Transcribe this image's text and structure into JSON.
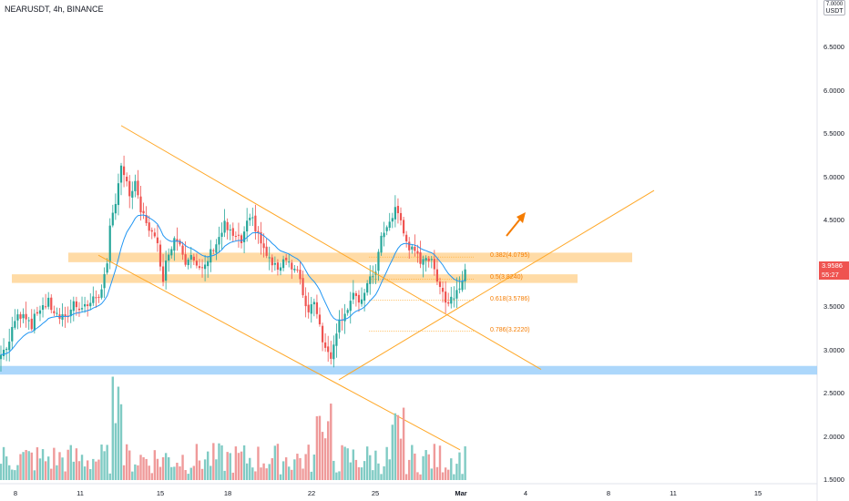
{
  "header": {
    "title": "NEARUSDT, 4h, BINANCE"
  },
  "axis": {
    "unit": "USDT",
    "price_labels": [
      "7.0000",
      "6.5000",
      "6.0000",
      "5.5000",
      "5.0000",
      "4.5000",
      "3.5000",
      "3.0000",
      "2.5000",
      "2.0000",
      "1.5000"
    ],
    "current_price": "3.9586",
    "countdown": "55:27",
    "time_labels": [
      {
        "text": "8",
        "bold": false
      },
      {
        "text": "11",
        "bold": false
      },
      {
        "text": "15",
        "bold": false
      },
      {
        "text": "18",
        "bold": false
      },
      {
        "text": "22",
        "bold": false
      },
      {
        "text": "25",
        "bold": false
      },
      {
        "text": "Mar",
        "bold": true
      },
      {
        "text": "4",
        "bold": false
      },
      {
        "text": "8",
        "bold": false
      },
      {
        "text": "11",
        "bold": false
      },
      {
        "text": "15",
        "bold": false
      }
    ]
  },
  "fib_levels": [
    {
      "label": "0.382(4.0795)",
      "value": 4.0795
    },
    {
      "label": "0.5(3.8240)",
      "value": 3.824
    },
    {
      "label": "0.618(3.5786)",
      "value": 3.5786
    },
    {
      "label": "0.786(3.2220)",
      "value": 3.222
    }
  ],
  "colors": {
    "up": "#26a69a",
    "down": "#ef5350",
    "ema": "#2196f3",
    "drawing": "#ffa726",
    "support_zone": "#90caf9",
    "resistance_zone": "#ffcc80"
  },
  "chart_data": {
    "type": "candlestick",
    "symbol": "NEARUSDT",
    "interval": "4h",
    "exchange": "BINANCE",
    "ylim": [
      1.5,
      7.0
    ],
    "zones": [
      {
        "kind": "resistance",
        "low": 4.02,
        "high": 4.13
      },
      {
        "kind": "resistance",
        "low": 3.78,
        "high": 3.88
      },
      {
        "kind": "support",
        "low": 2.72,
        "high": 2.82
      }
    ],
    "price_path": [
      [
        0,
        2.95
      ],
      [
        3,
        3.1
      ],
      [
        5,
        3.35
      ],
      [
        8,
        3.45
      ],
      [
        11,
        3.3
      ],
      [
        14,
        3.5
      ],
      [
        17,
        3.55
      ],
      [
        20,
        3.4
      ],
      [
        23,
        3.35
      ],
      [
        26,
        3.55
      ],
      [
        29,
        3.5
      ],
      [
        32,
        3.55
      ],
      [
        35,
        3.65
      ],
      [
        38,
        3.95
      ],
      [
        39,
        4.4
      ],
      [
        41,
        4.75
      ],
      [
        43,
        5.15
      ],
      [
        44,
        5.0
      ],
      [
        46,
        4.8
      ],
      [
        48,
        4.9
      ],
      [
        50,
        4.6
      ],
      [
        52,
        4.5
      ],
      [
        54,
        4.35
      ],
      [
        56,
        4.2
      ],
      [
        58,
        3.85
      ],
      [
        60,
        4.15
      ],
      [
        62,
        4.3
      ],
      [
        64,
        4.25
      ],
      [
        66,
        4.05
      ],
      [
        68,
        4.15
      ],
      [
        70,
        3.95
      ],
      [
        72,
        3.9
      ],
      [
        74,
        4.05
      ],
      [
        76,
        4.2
      ],
      [
        78,
        4.3
      ],
      [
        80,
        4.45
      ],
      [
        82,
        4.35
      ],
      [
        84,
        4.3
      ],
      [
        86,
        4.25
      ],
      [
        88,
        4.45
      ],
      [
        90,
        4.5
      ],
      [
        92,
        4.35
      ],
      [
        94,
        4.15
      ],
      [
        96,
        4.05
      ],
      [
        98,
        3.95
      ],
      [
        100,
        4.0
      ],
      [
        102,
        4.1
      ],
      [
        104,
        3.95
      ],
      [
        106,
        3.9
      ],
      [
        108,
        3.65
      ],
      [
        110,
        3.45
      ],
      [
        112,
        3.6
      ],
      [
        114,
        3.3
      ],
      [
        116,
        3.0
      ],
      [
        118,
        2.95
      ],
      [
        120,
        3.25
      ],
      [
        122,
        3.4
      ],
      [
        124,
        3.5
      ],
      [
        126,
        3.65
      ],
      [
        128,
        3.5
      ],
      [
        130,
        3.7
      ],
      [
        132,
        3.8
      ],
      [
        134,
        3.95
      ],
      [
        136,
        4.3
      ],
      [
        138,
        4.4
      ],
      [
        140,
        4.55
      ],
      [
        141,
        4.65
      ],
      [
        142,
        4.6
      ],
      [
        144,
        4.35
      ],
      [
        146,
        4.2
      ],
      [
        148,
        4.1
      ],
      [
        150,
        4.05
      ],
      [
        152,
        4.1
      ],
      [
        154,
        4.0
      ],
      [
        156,
        3.85
      ],
      [
        158,
        3.7
      ],
      [
        159,
        3.55
      ],
      [
        161,
        3.6
      ],
      [
        163,
        3.7
      ],
      [
        165,
        3.85
      ],
      [
        166,
        3.96
      ]
    ]
  },
  "drawings": {
    "channel_upper": [
      [
        0.0,
        5.6
      ],
      [
        0.51,
        4.04
      ]
    ],
    "channel_lower": [
      [
        0.0,
        4.0
      ],
      [
        0.51,
        2.1
      ]
    ],
    "channel_mid": [
      [
        0.3,
        4.45
      ],
      [
        0.63,
        2.85
      ]
    ],
    "rising_line": [
      [
        0.4,
        2.68
      ],
      [
        0.77,
        4.85
      ]
    ]
  }
}
